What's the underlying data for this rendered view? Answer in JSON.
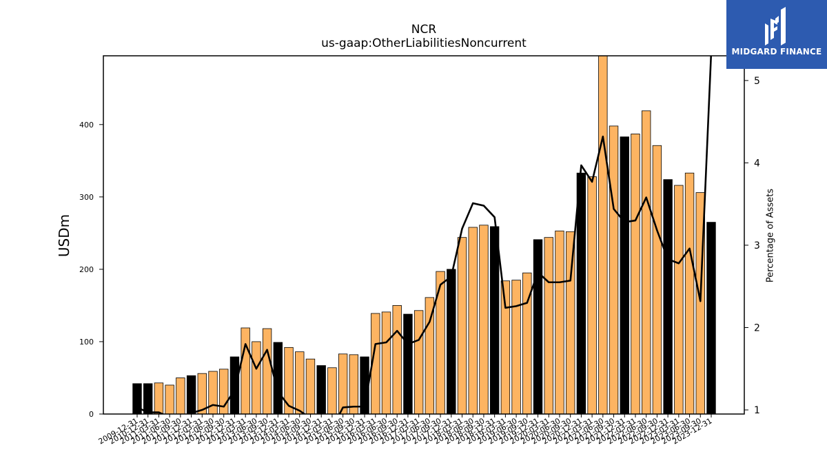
{
  "chart_data": {
    "type": "bar",
    "title": "NCR",
    "subtitle": "us-gaap:OtherLiabilitiesNoncurrent",
    "ylabel": "USDm",
    "y2label": "Percentage of Assets",
    "ylim": [
      0,
      495
    ],
    "y2lim": [
      0.95,
      5.3
    ],
    "yticks": [
      0,
      100,
      200,
      300,
      400
    ],
    "y2ticks": [
      1,
      2,
      3,
      4,
      5
    ],
    "bar_colors": {
      "annual": "#000000",
      "quarterly": "#fdb462",
      "edge": "#000000"
    },
    "line_color": "#000000",
    "categories": [
      "2009-12-31",
      "2010-12-31",
      "2011-03-31",
      "2011-06-30",
      "2011-09-30",
      "2011-12-31",
      "2012-03-31",
      "2012-06-30",
      "2012-09-30",
      "2012-12-31",
      "2013-03-31",
      "2013-06-30",
      "2013-09-30",
      "2013-12-31",
      "2014-03-31",
      "2014-06-30",
      "2014-09-30",
      "2014-12-31",
      "2015-03-31",
      "2015-06-30",
      "2015-09-30",
      "2015-12-31",
      "2016-03-31",
      "2016-06-30",
      "2016-09-30",
      "2016-12-31",
      "2017-03-31",
      "2017-06-30",
      "2017-09-30",
      "2017-12-31",
      "2018-03-31",
      "2018-06-30",
      "2018-09-30",
      "2018-12-31",
      "2019-03-31",
      "2019-06-30",
      "2019-09-30",
      "2019-12-31",
      "2020-03-31",
      "2020-06-30",
      "2020-09-30",
      "2020-12-31",
      "2021-03-31",
      "2021-06-30",
      "2021-09-30",
      "2021-12-31",
      "2022-03-31",
      "2022-06-30",
      "2022-09-30",
      "2022-12-31",
      "2023-03-31",
      "2023-06-30",
      "2023-09-30",
      "2023-12-31"
    ],
    "annual": [
      true,
      true,
      false,
      false,
      false,
      true,
      false,
      false,
      false,
      true,
      false,
      false,
      false,
      true,
      false,
      false,
      false,
      true,
      false,
      false,
      false,
      true,
      false,
      false,
      false,
      true,
      false,
      false,
      false,
      true,
      false,
      false,
      false,
      true,
      false,
      false,
      false,
      true,
      false,
      false,
      false,
      true,
      false,
      false,
      false,
      true,
      false,
      false,
      false,
      true,
      false,
      false,
      false,
      true
    ],
    "series": [
      {
        "name": "USDm",
        "values": [
          42,
          42,
          43,
          40,
          50,
          53,
          56,
          59,
          62,
          79,
          119,
          100,
          118,
          99,
          92,
          86,
          76,
          67,
          64,
          83,
          82,
          79,
          139,
          141,
          150,
          138,
          143,
          161,
          197,
          200,
          244,
          258,
          261,
          259,
          184,
          185,
          195,
          241,
          244,
          253,
          252,
          333,
          328,
          497,
          398,
          383,
          387,
          419,
          371,
          324,
          316,
          333,
          306,
          265
        ]
      },
      {
        "name": "Percentage of Assets",
        "values": [
          1.03,
          0.97,
          0.97,
          0.91,
          0.9,
          0.96,
          1.0,
          1.06,
          1.04,
          1.24,
          1.8,
          1.5,
          1.73,
          1.22,
          1.05,
          0.99,
          0.9,
          0.8,
          0.77,
          1.03,
          1.04,
          1.04,
          1.8,
          1.82,
          1.96,
          1.8,
          1.85,
          2.07,
          2.52,
          2.62,
          3.2,
          3.51,
          3.48,
          3.34,
          2.24,
          2.26,
          2.3,
          2.67,
          2.55,
          2.55,
          2.57,
          3.97,
          3.77,
          4.32,
          3.44,
          3.28,
          3.3,
          3.58,
          3.18,
          2.83,
          2.78,
          2.96,
          2.32,
          5.35
        ]
      }
    ]
  },
  "logo": {
    "text": "MIDGARD FINANCE"
  }
}
